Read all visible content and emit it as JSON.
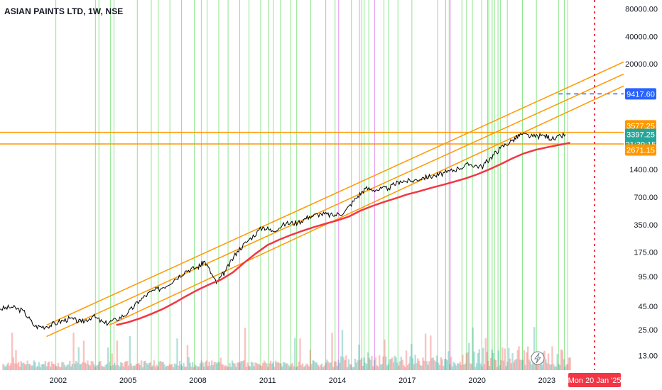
{
  "header": {
    "title": "ASIAN PAINTS LTD, 1W, NSE"
  },
  "chart_data": {
    "type": "line",
    "title": "ASIAN PAINTS LTD, 1W, NSE",
    "yscale": "log",
    "ylim": [
      9,
      100000
    ],
    "xlim": [
      1999.5,
      2026.3
    ],
    "y_ticks": [
      "80000.00",
      "40000.00",
      "20000.00",
      "1400.00",
      "700.00",
      "350.00",
      "175.00",
      "95.00",
      "45.00",
      "25.00",
      "13.00"
    ],
    "y_tick_values": [
      80000,
      40000,
      20000,
      1400,
      700,
      350,
      175,
      95,
      45,
      25,
      13
    ],
    "x_ticks": [
      "2002",
      "2005",
      "2008",
      "2011",
      "2014",
      "2017",
      "2020",
      "2023"
    ],
    "x_tick_values": [
      2002,
      2005,
      2008,
      2011,
      2014,
      2017,
      2020,
      2023
    ],
    "series": [
      {
        "values_x": [
          1999.5,
          2000.0,
          2000.5,
          2001.0,
          2001.5,
          2002.0,
          2002.5,
          2003.0,
          2003.5,
          2004.0,
          2004.5,
          2005.0,
          2005.5,
          2006.0,
          2006.5,
          2007.0,
          2007.5,
          2008.0,
          2008.3,
          2008.8,
          2009.2,
          2009.7,
          2010.2,
          2010.8,
          2011.2,
          2011.8,
          2012.3,
          2012.8,
          2013.3,
          2013.8,
          2014.3,
          2014.8,
          2015.2,
          2015.7,
          2016.2,
          2016.7,
          2017.2,
          2017.7,
          2018.2,
          2018.7,
          2019.2,
          2019.7,
          2020.2,
          2020.6,
          2021.0,
          2021.5,
          2021.9,
          2022.4,
          2022.9,
          2023.3,
          2023.8
        ],
        "values_y": [
          42,
          44,
          40,
          27,
          27,
          30,
          33,
          30,
          35,
          29,
          32,
          38,
          52,
          65,
          72,
          88,
          110,
          120,
          140,
          80,
          110,
          180,
          240,
          330,
          300,
          360,
          370,
          430,
          460,
          440,
          480,
          680,
          870,
          840,
          880,
          1050,
          1050,
          1150,
          1200,
          1300,
          1450,
          1600,
          1500,
          1900,
          2400,
          2900,
          3400,
          3200,
          3300,
          3000,
          3397.25
        ]
      },
      {
        "values_x": [
          2004.5,
          2005.0,
          2005.5,
          2006.0,
          2006.5,
          2007.0,
          2007.5,
          2008.0,
          2008.5,
          2009.0,
          2009.5,
          2010.0,
          2010.5,
          2011.0,
          2011.5,
          2012.0,
          2012.5,
          2013.0,
          2013.5,
          2014.0,
          2014.5,
          2015.0,
          2015.5,
          2016.0,
          2016.5,
          2017.0,
          2017.5,
          2018.0,
          2018.5,
          2019.0,
          2019.5,
          2020.0,
          2020.5,
          2021.0,
          2021.5,
          2022.0,
          2022.5,
          2023.0,
          2023.5,
          2024.0
        ],
        "values_y": [
          28,
          30,
          33,
          37,
          42,
          49,
          58,
          68,
          78,
          88,
          105,
          135,
          170,
          210,
          240,
          270,
          300,
          330,
          360,
          390,
          430,
          500,
          560,
          620,
          680,
          750,
          810,
          880,
          950,
          1030,
          1120,
          1240,
          1400,
          1600,
          1850,
          2100,
          2300,
          2450,
          2600,
          2750
        ]
      }
    ],
    "horizontal_lines": [
      3577.25,
      2671.15
    ],
    "target_line": 9417.6,
    "price_labels": {
      "resistance": "3577.25",
      "last_price": "3397.25",
      "countdown": "21:39:15",
      "support": "2671.15",
      "target": "9417.60"
    },
    "cursor_date_label": "Mon 20 Jan '25",
    "cursor_x_value": 2025.05,
    "channel_lines": [
      {
        "from": [
          2001.5,
          28
        ],
        "to": [
          2026.3,
          21000
        ]
      },
      {
        "from": [
          2001.5,
          21
        ],
        "to": [
          2026.3,
          15500
        ]
      },
      {
        "from": [
          2004.2,
          28
        ],
        "to": [
          2026.3,
          11500
        ]
      }
    ],
    "vertical_green_lines": [
      2001.9,
      2003.6,
      2003.75,
      2004.25,
      2004.4,
      2005.4,
      2006.0,
      2006.3,
      2006.8,
      2007.3,
      2007.85,
      2008.15,
      2008.4,
      2008.9,
      2009.3,
      2009.8,
      2010.2,
      2010.7,
      2011.05,
      2011.25,
      2011.55,
      2012.0,
      2012.25,
      2012.85,
      2013.9,
      2014.6,
      2015.05,
      2015.15,
      2015.35,
      2016.0,
      2016.2,
      2016.6,
      2017.2,
      2018.3,
      2018.8,
      2019.35,
      2019.55,
      2019.8,
      2020.2,
      2020.5,
      2020.65,
      2020.75,
      2020.9,
      2021.0,
      2021.3,
      2021.95,
      2022.55,
      2023.5,
      2023.75,
      2023.9
    ],
    "vertical_pink_lines": [
      2013.5,
      2014.05,
      2014.95,
      2015.6,
      2018.65,
      2018.85,
      2020.45
    ],
    "colors": {
      "up_line": "#000000",
      "ma": "#f23645",
      "channel": "#ff9800",
      "green_line": "#8de58d",
      "pink_line": "#e69cf0",
      "target": "#2962ff",
      "last_price_bg": "#26a69a",
      "cursor_bg": "#f23645"
    }
  }
}
